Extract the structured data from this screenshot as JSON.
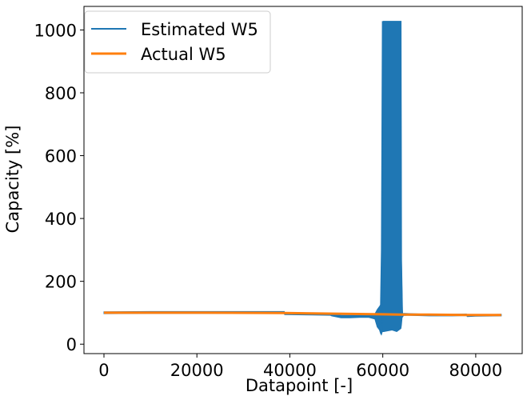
{
  "chart_data": {
    "type": "line",
    "title": "",
    "xlabel": "Datapoint [-]",
    "ylabel": "Capacity [%]",
    "xlim": [
      -4300,
      90000
    ],
    "ylim": [
      -30,
      1075
    ],
    "xticks": [
      0,
      20000,
      40000,
      60000,
      80000
    ],
    "xtick_labels": [
      "0",
      "20000",
      "40000",
      "60000",
      "80000"
    ],
    "yticks": [
      0,
      200,
      400,
      600,
      800,
      1000
    ],
    "ytick_labels": [
      "0",
      "200",
      "400",
      "600",
      "800",
      "1000"
    ],
    "legend": {
      "position": "top-left"
    },
    "series": [
      {
        "name": "Estimated W5",
        "color": "#1f77b4",
        "x": [
          0,
          10000,
          20000,
          30000,
          38800,
          38900,
          45000,
          48700,
          49000,
          51000,
          53000,
          55000,
          57000,
          58300,
          58800,
          59300,
          59500,
          59700,
          59900,
          60200,
          62000,
          63000,
          63900,
          64000,
          64200,
          64300,
          64500,
          70000,
          75000,
          78000,
          78200,
          80000,
          85500
        ],
        "y": [
          100,
          101,
          101,
          101,
          101,
          97,
          96,
          96,
          93,
          88,
          88,
          89,
          90,
          88,
          95,
          105,
          75,
          40,
          60,
          1027,
          1027,
          1027,
          1027,
          270,
          100,
          90,
          95,
          92,
          92,
          93,
          90,
          91,
          92
        ],
        "band_low": [
          97,
          98,
          98,
          98,
          98,
          94,
          93,
          92,
          90,
          84,
          84,
          85,
          85,
          80,
          55,
          45,
          35,
          30,
          40,
          40,
          45,
          40,
          50,
          60,
          92,
          88,
          92,
          90,
          90,
          91,
          88,
          89,
          90
        ],
        "band_high": [
          103,
          104,
          104,
          104,
          104,
          100,
          99,
          99,
          96,
          92,
          92,
          93,
          95,
          96,
          110,
          120,
          125,
          300,
          1027,
          1027,
          1027,
          1027,
          1027,
          270,
          110,
          96,
          98,
          95,
          95,
          96,
          93,
          94,
          95
        ]
      },
      {
        "name": "Actual W5",
        "color": "#ff7f0e",
        "x": [
          0,
          20000,
          38800,
          45000,
          55000,
          60000,
          64000,
          70000,
          78000,
          85500
        ],
        "y": [
          100,
          100,
          99,
          98,
          96,
          95,
          94,
          94,
          93,
          93
        ]
      }
    ]
  }
}
